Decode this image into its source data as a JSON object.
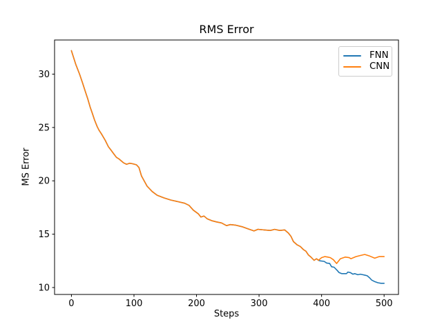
{
  "chart_data": {
    "type": "line",
    "title": "RMS Error",
    "xlabel": "Steps",
    "ylabel": "MS Error",
    "xlim": [
      -27,
      523
    ],
    "ylim": [
      9.35,
      33.2
    ],
    "x_ticks": [
      0,
      100,
      200,
      300,
      400,
      500
    ],
    "y_ticks": [
      10,
      15,
      20,
      25,
      30
    ],
    "grid": false,
    "legend_position": "upper right",
    "axis_color": "#000000",
    "legend_border_color": "#cccccc",
    "series": [
      {
        "name": "FNN",
        "color": "#1f77b4",
        "points": [
          [
            0,
            32.2
          ],
          [
            7,
            30.9
          ],
          [
            13,
            30.0
          ],
          [
            18,
            29.15
          ],
          [
            22,
            28.4
          ],
          [
            26,
            27.7
          ],
          [
            30,
            26.9
          ],
          [
            33,
            26.4
          ],
          [
            37,
            25.7
          ],
          [
            41,
            25.1
          ],
          [
            44,
            24.75
          ],
          [
            48,
            24.4
          ],
          [
            54,
            23.8
          ],
          [
            59,
            23.2
          ],
          [
            63,
            22.9
          ],
          [
            68,
            22.5
          ],
          [
            72,
            22.2
          ],
          [
            76,
            22.05
          ],
          [
            83,
            21.7
          ],
          [
            88,
            21.55
          ],
          [
            93,
            21.65
          ],
          [
            98,
            21.6
          ],
          [
            104,
            21.5
          ],
          [
            108,
            21.25
          ],
          [
            112,
            20.45
          ],
          [
            121,
            19.5
          ],
          [
            129,
            19.0
          ],
          [
            137,
            18.65
          ],
          [
            148,
            18.4
          ],
          [
            159,
            18.2
          ],
          [
            170,
            18.05
          ],
          [
            181,
            17.9
          ],
          [
            188,
            17.7
          ],
          [
            195,
            17.25
          ],
          [
            203,
            16.9
          ],
          [
            207,
            16.6
          ],
          [
            212,
            16.7
          ],
          [
            217,
            16.45
          ],
          [
            225,
            16.25
          ],
          [
            232,
            16.15
          ],
          [
            240,
            16.05
          ],
          [
            248,
            15.8
          ],
          [
            254,
            15.9
          ],
          [
            262,
            15.85
          ],
          [
            273,
            15.7
          ],
          [
            282,
            15.5
          ],
          [
            292,
            15.3
          ],
          [
            298,
            15.45
          ],
          [
            308,
            15.4
          ],
          [
            318,
            15.35
          ],
          [
            325,
            15.45
          ],
          [
            333,
            15.35
          ],
          [
            341,
            15.4
          ],
          [
            347,
            15.1
          ],
          [
            351,
            14.8
          ],
          [
            355,
            14.3
          ],
          [
            361,
            14.0
          ],
          [
            366,
            13.85
          ],
          [
            371,
            13.55
          ],
          [
            375,
            13.4
          ],
          [
            379,
            13.05
          ],
          [
            383,
            12.85
          ],
          [
            388,
            12.55
          ],
          [
            392,
            12.7
          ],
          [
            395,
            12.55
          ],
          [
            398,
            12.5
          ],
          [
            404,
            12.45
          ],
          [
            408,
            12.3
          ],
          [
            413,
            12.25
          ],
          [
            416,
            11.95
          ],
          [
            420,
            11.9
          ],
          [
            425,
            11.6
          ],
          [
            428,
            11.4
          ],
          [
            432,
            11.3
          ],
          [
            440,
            11.3
          ],
          [
            442,
            11.45
          ],
          [
            446,
            11.4
          ],
          [
            450,
            11.25
          ],
          [
            453,
            11.3
          ],
          [
            458,
            11.2
          ],
          [
            462,
            11.25
          ],
          [
            466,
            11.2
          ],
          [
            470,
            11.15
          ],
          [
            473,
            11.1
          ],
          [
            477,
            10.9
          ],
          [
            480,
            10.7
          ],
          [
            485,
            10.55
          ],
          [
            490,
            10.45
          ],
          [
            495,
            10.4
          ],
          [
            500,
            10.4
          ]
        ]
      },
      {
        "name": "CNN",
        "color": "#ff7f0e",
        "points": [
          [
            0,
            32.2
          ],
          [
            7,
            30.9
          ],
          [
            13,
            30.0
          ],
          [
            18,
            29.15
          ],
          [
            22,
            28.4
          ],
          [
            26,
            27.7
          ],
          [
            30,
            26.9
          ],
          [
            33,
            26.4
          ],
          [
            37,
            25.7
          ],
          [
            41,
            25.1
          ],
          [
            44,
            24.75
          ],
          [
            48,
            24.4
          ],
          [
            54,
            23.8
          ],
          [
            59,
            23.2
          ],
          [
            63,
            22.9
          ],
          [
            68,
            22.5
          ],
          [
            72,
            22.2
          ],
          [
            76,
            22.05
          ],
          [
            83,
            21.7
          ],
          [
            88,
            21.55
          ],
          [
            93,
            21.65
          ],
          [
            98,
            21.6
          ],
          [
            104,
            21.5
          ],
          [
            108,
            21.25
          ],
          [
            112,
            20.45
          ],
          [
            121,
            19.5
          ],
          [
            129,
            19.0
          ],
          [
            137,
            18.65
          ],
          [
            148,
            18.4
          ],
          [
            159,
            18.2
          ],
          [
            170,
            18.05
          ],
          [
            181,
            17.9
          ],
          [
            188,
            17.7
          ],
          [
            195,
            17.25
          ],
          [
            203,
            16.9
          ],
          [
            207,
            16.6
          ],
          [
            212,
            16.7
          ],
          [
            217,
            16.45
          ],
          [
            225,
            16.25
          ],
          [
            232,
            16.15
          ],
          [
            240,
            16.05
          ],
          [
            248,
            15.8
          ],
          [
            254,
            15.9
          ],
          [
            262,
            15.85
          ],
          [
            273,
            15.7
          ],
          [
            282,
            15.5
          ],
          [
            292,
            15.3
          ],
          [
            298,
            15.45
          ],
          [
            308,
            15.4
          ],
          [
            318,
            15.35
          ],
          [
            325,
            15.45
          ],
          [
            333,
            15.35
          ],
          [
            341,
            15.4
          ],
          [
            347,
            15.1
          ],
          [
            351,
            14.8
          ],
          [
            355,
            14.3
          ],
          [
            361,
            14.0
          ],
          [
            366,
            13.85
          ],
          [
            371,
            13.55
          ],
          [
            375,
            13.4
          ],
          [
            379,
            13.05
          ],
          [
            383,
            12.85
          ],
          [
            388,
            12.55
          ],
          [
            392,
            12.7
          ],
          [
            395,
            12.55
          ],
          [
            398,
            12.7
          ],
          [
            400,
            12.8
          ],
          [
            405,
            12.9
          ],
          [
            410,
            12.85
          ],
          [
            414,
            12.8
          ],
          [
            419,
            12.6
          ],
          [
            424,
            12.25
          ],
          [
            430,
            12.7
          ],
          [
            438,
            12.85
          ],
          [
            444,
            12.8
          ],
          [
            447,
            12.7
          ],
          [
            455,
            12.9
          ],
          [
            462,
            13.0
          ],
          [
            469,
            13.1
          ],
          [
            477,
            12.95
          ],
          [
            485,
            12.75
          ],
          [
            492,
            12.9
          ],
          [
            500,
            12.9
          ]
        ]
      }
    ]
  }
}
